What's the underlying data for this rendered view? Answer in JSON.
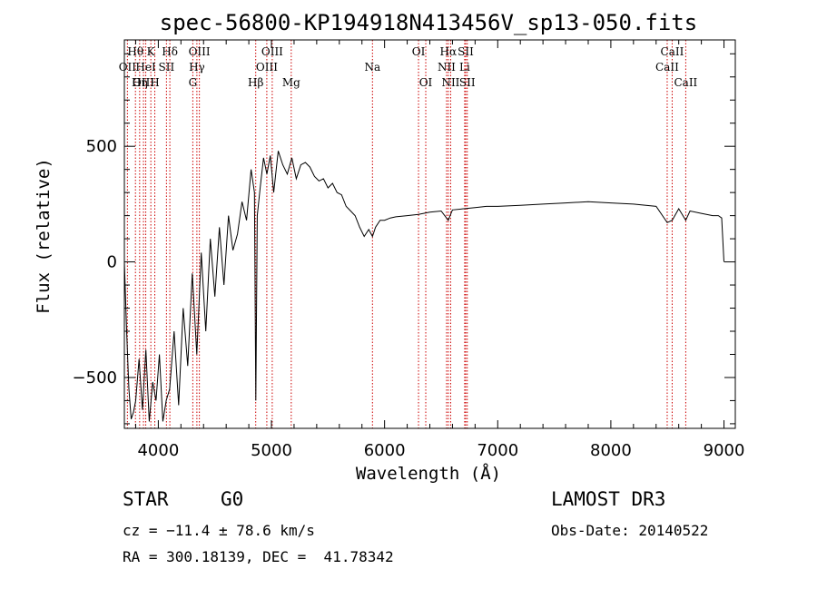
{
  "chart_data": {
    "type": "line",
    "title": "spec-56800-KP194918N413456V_sp13-050.fits",
    "xlabel": "Wavelength (Å)",
    "ylabel": "Flux (relative)",
    "xlim": [
      3700,
      9100
    ],
    "ylim": [
      -720,
      960
    ],
    "xticks": [
      4000,
      5000,
      6000,
      7000,
      8000,
      9000
    ],
    "xtick_labels": [
      "4000",
      "5000",
      "6000",
      "7000",
      "8000",
      "9000"
    ],
    "yticks": [
      -500,
      0,
      500
    ],
    "ytick_labels": [
      "−500",
      "0",
      "500"
    ],
    "series": [
      {
        "name": "flux",
        "x": [
          3700,
          3720,
          3740,
          3760,
          3780,
          3800,
          3830,
          3860,
          3890,
          3920,
          3950,
          3980,
          4010,
          4040,
          4070,
          4100,
          4140,
          4180,
          4220,
          4260,
          4300,
          4340,
          4380,
          4420,
          4460,
          4500,
          4540,
          4580,
          4620,
          4660,
          4700,
          4740,
          4780,
          4820,
          4850,
          4862,
          4875,
          4900,
          4930,
          4960,
          4990,
          5020,
          5060,
          5100,
          5140,
          5180,
          5220,
          5260,
          5300,
          5340,
          5380,
          5420,
          5460,
          5500,
          5540,
          5580,
          5620,
          5660,
          5700,
          5740,
          5780,
          5820,
          5860,
          5893,
          5920,
          5960,
          6000,
          6050,
          6100,
          6200,
          6300,
          6400,
          6500,
          6563,
          6600,
          6700,
          6800,
          6900,
          7000,
          7200,
          7400,
          7600,
          7800,
          8000,
          8200,
          8400,
          8498,
          8542,
          8600,
          8662,
          8700,
          8800,
          8900,
          8950,
          8980,
          9000
        ],
        "y": [
          0,
          -300,
          -550,
          -680,
          -650,
          -600,
          -420,
          -640,
          -380,
          -690,
          -520,
          -600,
          -400,
          -690,
          -600,
          -550,
          -300,
          -620,
          -200,
          -450,
          -50,
          -400,
          40,
          -300,
          100,
          -150,
          150,
          -100,
          200,
          50,
          120,
          260,
          180,
          400,
          300,
          -600,
          200,
          320,
          450,
          380,
          460,
          300,
          480,
          420,
          380,
          450,
          360,
          420,
          430,
          410,
          370,
          350,
          360,
          320,
          340,
          300,
          290,
          240,
          220,
          200,
          150,
          110,
          140,
          110,
          150,
          180,
          180,
          190,
          195,
          200,
          205,
          215,
          220,
          180,
          225,
          230,
          235,
          240,
          240,
          245,
          250,
          255,
          260,
          255,
          250,
          240,
          170,
          180,
          230,
          180,
          220,
          210,
          200,
          200,
          190,
          0
        ]
      }
    ],
    "spectral_lines": [
      {
        "label": "Hθ",
        "wavelength": 3798,
        "row": 1
      },
      {
        "label": "OII",
        "wavelength": 3727,
        "row": 2
      },
      {
        "label": "OIII",
        "wavelength": 3869,
        "row": 3
      },
      {
        "label": "K",
        "wavelength": 3934,
        "row": 1
      },
      {
        "label": "HeI",
        "wavelength": 3889,
        "row": 2
      },
      {
        "label": "Hη",
        "wavelength": 3835,
        "row": 3
      },
      {
        "label": "H",
        "wavelength": 3969,
        "row": 3
      },
      {
        "label": "SII",
        "wavelength": 4072,
        "row": 2
      },
      {
        "label": "Hδ",
        "wavelength": 4102,
        "row": 1
      },
      {
        "label": "OIII",
        "wavelength": 4363,
        "row": 1
      },
      {
        "label": "Hγ",
        "wavelength": 4341,
        "row": 2
      },
      {
        "label": "G",
        "wavelength": 4305,
        "row": 3
      },
      {
        "label": "OIII",
        "wavelength": 5007,
        "row": 1
      },
      {
        "label": "OIII",
        "wavelength": 4959,
        "row": 2
      },
      {
        "label": "Hβ",
        "wavelength": 4861,
        "row": 3
      },
      {
        "label": "Mg",
        "wavelength": 5175,
        "row": 3
      },
      {
        "label": "Na",
        "wavelength": 5893,
        "row": 2
      },
      {
        "label": "OI",
        "wavelength": 6300,
        "row": 1
      },
      {
        "label": "OI",
        "wavelength": 6364,
        "row": 3
      },
      {
        "label": "Hα",
        "wavelength": 6563,
        "row": 1
      },
      {
        "label": "SII",
        "wavelength": 6717,
        "row": 1
      },
      {
        "label": "NII",
        "wavelength": 6548,
        "row": 2
      },
      {
        "label": "Li",
        "wavelength": 6708,
        "row": 2
      },
      {
        "label": "NII",
        "wavelength": 6584,
        "row": 3
      },
      {
        "label": "SII",
        "wavelength": 6731,
        "row": 3
      },
      {
        "label": "CaII",
        "wavelength": 8542,
        "row": 1
      },
      {
        "label": "CaII",
        "wavelength": 8498,
        "row": 2
      },
      {
        "label": "CaII",
        "wavelength": 8662,
        "row": 3
      }
    ]
  },
  "info": {
    "object_class": "STAR",
    "subclass": "G0",
    "survey": "LAMOST DR3",
    "redshift": "cz = −11.4 ± 78.6 km/s",
    "obs_date": "Obs-Date: 20140522",
    "coords": "RA = 300.18139, DEC =  41.78342"
  },
  "colors": {
    "axis": "#000000",
    "spectrum": "#000000",
    "line_marker": "#cc0000"
  }
}
